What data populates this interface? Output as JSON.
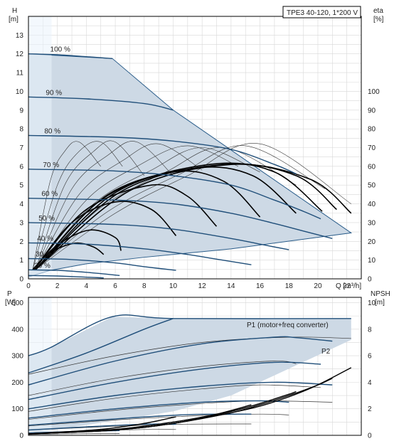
{
  "model_label": "TPE3 40-120, 1*200 V",
  "colors": {
    "envelope_fill": "#cdd9e5",
    "envelope_edge": "#2b5d8a",
    "head_curve": "#1f4e79",
    "eta_curve": "#000000",
    "thin_curve": "#333333",
    "grid": "#d8d8d8",
    "axis": "#000000",
    "highlight": "#eaf2fb"
  },
  "chart_data": [
    {
      "id": "head",
      "type": "line",
      "title": "",
      "xlabel": "Q [m³/h]",
      "ylabel_left": [
        "H",
        "[m]"
      ],
      "ylabel_right": [
        "eta",
        "[%]"
      ],
      "xlim": [
        0,
        23
      ],
      "ylim": [
        0,
        14
      ],
      "y2lim": [
        0,
        140
      ],
      "x_ticks": [
        0,
        2,
        4,
        6,
        8,
        10,
        12,
        14,
        16,
        18,
        20,
        22
      ],
      "y_ticks": [
        0,
        1,
        2,
        3,
        4,
        5,
        6,
        7,
        8,
        9,
        10,
        11,
        12,
        13
      ],
      "y2_ticks": [
        0,
        10,
        20,
        30,
        40,
        50,
        60,
        70,
        80,
        90,
        100
      ],
      "grid": true,
      "envelope": {
        "x": [
          0,
          5.8,
          10,
          22.3,
          14,
          8,
          4,
          1.5,
          0
        ],
        "y": [
          12.0,
          11.75,
          9.0,
          2.45,
          1.6,
          1.15,
          0.8,
          0.45,
          0.1
        ]
      },
      "speed_curves": [
        {
          "label": "100 %",
          "x": [
            0,
            2,
            4,
            5.8
          ],
          "y": [
            12.0,
            11.95,
            11.85,
            11.75
          ]
        },
        {
          "label": "90 %",
          "x": [
            0,
            4,
            8,
            10
          ],
          "y": [
            9.7,
            9.6,
            9.35,
            9.0
          ]
        },
        {
          "label": "80 %",
          "x": [
            0,
            6,
            10,
            14,
            17,
            18.5
          ],
          "y": [
            7.65,
            7.55,
            7.35,
            6.9,
            6.1,
            5.6
          ]
        },
        {
          "label": "70 %",
          "x": [
            0,
            6,
            10,
            14,
            17,
            19,
            20.2
          ],
          "y": [
            5.85,
            5.75,
            5.5,
            5.0,
            4.2,
            3.6,
            3.2
          ]
        },
        {
          "label": "60 %",
          "x": [
            0,
            6,
            10,
            14,
            17,
            19,
            21
          ],
          "y": [
            4.3,
            4.2,
            4.0,
            3.5,
            2.95,
            2.55,
            2.15
          ]
        },
        {
          "label": "50 %",
          "x": [
            0,
            6,
            10,
            14,
            16,
            18
          ],
          "y": [
            3.0,
            2.9,
            2.65,
            2.15,
            1.85,
            1.55
          ]
        },
        {
          "label": "40 %",
          "x": [
            0,
            4,
            8,
            11,
            13,
            15.4
          ],
          "y": [
            1.92,
            1.85,
            1.6,
            1.3,
            1.05,
            0.75
          ]
        },
        {
          "label": "30 %",
          "x": [
            0,
            3,
            6,
            8,
            10.2
          ],
          "y": [
            1.08,
            1.03,
            0.85,
            0.65,
            0.45
          ]
        },
        {
          "label": "20 %",
          "x": [
            0,
            2,
            4,
            6.3
          ],
          "y": [
            0.48,
            0.45,
            0.35,
            0.18
          ]
        },
        {
          "label": "",
          "x": [
            0,
            2,
            3.8,
            5.2
          ],
          "y": [
            0.18,
            0.15,
            0.1,
            0.05
          ]
        }
      ],
      "eta_thin_curves": [
        {
          "x": [
            0.3,
            1.5,
            2.5,
            3.5,
            5.0
          ],
          "y2": [
            5,
            52,
            68,
            73,
            60
          ]
        },
        {
          "x": [
            0.3,
            2,
            3.5,
            5,
            6.5
          ],
          "y2": [
            5,
            50,
            68,
            73,
            60
          ]
        },
        {
          "x": [
            0.5,
            2.5,
            4.5,
            6,
            8
          ],
          "y2": [
            5,
            50,
            68,
            73,
            55
          ]
        },
        {
          "x": [
            0.5,
            3,
            5.5,
            7.5,
            10
          ],
          "y2": [
            5,
            48,
            66,
            73,
            55
          ]
        },
        {
          "x": [
            0.5,
            3.5,
            6.5,
            9,
            12
          ],
          "y2": [
            5,
            45,
            63,
            72,
            58
          ]
        },
        {
          "x": [
            0.5,
            4,
            7.5,
            11,
            14.5
          ],
          "y2": [
            5,
            42,
            60,
            71,
            60
          ]
        },
        {
          "x": [
            0.5,
            4.5,
            8.5,
            12,
            16
          ],
          "y2": [
            5,
            40,
            58,
            70,
            57
          ]
        },
        {
          "x": [
            0.5,
            5,
            9.5,
            13.5,
            18.5
          ],
          "y2": [
            5,
            38,
            57,
            70,
            50
          ]
        },
        {
          "x": [
            0.5,
            5.5,
            10.5,
            15,
            20.5
          ],
          "y2": [
            5,
            36,
            56,
            71,
            48
          ]
        },
        {
          "x": [
            0.5,
            6,
            11,
            16,
            22.3
          ],
          "y2": [
            5,
            35,
            55,
            72,
            40
          ]
        }
      ],
      "eta_bold_curves": [
        {
          "x": [
            0.3,
            1.5,
            3.2,
            4.5,
            5.2
          ],
          "y2": [
            5,
            14,
            19,
            17,
            13
          ]
        },
        {
          "x": [
            0.3,
            2,
            4.2,
            6,
            6.4
          ],
          "y2": [
            5,
            18,
            26,
            22,
            15
          ]
        },
        {
          "x": [
            0.4,
            3,
            6,
            8.5,
            10.2
          ],
          "y2": [
            5,
            30,
            41,
            37,
            23
          ]
        },
        {
          "x": [
            0.4,
            4,
            8.5,
            11,
            13
          ],
          "y2": [
            5,
            37,
            50,
            44,
            28
          ]
        },
        {
          "x": [
            0.5,
            5,
            10,
            13.5,
            16
          ],
          "y2": [
            5,
            42,
            57,
            52,
            33
          ]
        },
        {
          "x": [
            0.5,
            5.5,
            11.5,
            15.5,
            18.5
          ],
          "y2": [
            5,
            45,
            59,
            55,
            35
          ]
        },
        {
          "x": [
            0.5,
            6,
            12.5,
            17,
            20.3
          ],
          "y2": [
            5,
            46,
            61,
            57,
            36
          ]
        },
        {
          "x": [
            0.5,
            6.5,
            13.5,
            18.5,
            21.3
          ],
          "y2": [
            5,
            47,
            61,
            55,
            37
          ]
        },
        {
          "x": [
            0.5,
            7,
            14,
            19.5,
            22.3
          ],
          "y2": [
            5,
            47,
            61,
            53,
            35
          ]
        }
      ]
    },
    {
      "id": "power",
      "type": "line",
      "title": "",
      "xlabel": "",
      "ylabel_left": [
        "P",
        "[W]"
      ],
      "ylabel_right": [
        "NPSH",
        "[m]"
      ],
      "xlim": [
        0,
        23
      ],
      "ylim": [
        0,
        520
      ],
      "y2lim": [
        0,
        10.4
      ],
      "y_ticks": [
        0,
        100,
        200,
        300,
        400,
        500
      ],
      "y2_ticks": [
        0,
        2,
        4,
        6,
        8,
        10
      ],
      "grid": true,
      "envelope": {
        "x": [
          0,
          1.5,
          5.8,
          10,
          22.3,
          22.3,
          14,
          10,
          0
        ],
        "y": [
          300,
          330,
          447,
          440,
          440,
          360,
          150,
          90,
          5
        ]
      },
      "p1_curves": [
        {
          "x": [
            0,
            1.5,
            5.8,
            10,
            22.3
          ],
          "y": [
            300,
            330,
            447,
            440,
            440
          ]
        },
        {
          "x": [
            0,
            4,
            8,
            10
          ],
          "y": [
            235,
            310,
            400,
            440
          ]
        },
        {
          "x": [
            0,
            6,
            12,
            17,
            18.5,
            21
          ],
          "y": [
            190,
            280,
            345,
            370,
            368,
            355
          ]
        },
        {
          "x": [
            0,
            6,
            12,
            17,
            20.2
          ],
          "y": [
            135,
            200,
            250,
            275,
            268
          ]
        },
        {
          "x": [
            0,
            6,
            12,
            17,
            21
          ],
          "y": [
            100,
            150,
            185,
            200,
            190
          ]
        },
        {
          "x": [
            0,
            6,
            12,
            16,
            18
          ],
          "y": [
            65,
            100,
            125,
            130,
            125
          ]
        },
        {
          "x": [
            0,
            6,
            11,
            15.4
          ],
          "y": [
            38,
            62,
            78,
            80
          ]
        },
        {
          "x": [
            0,
            4,
            8,
            10.2
          ],
          "y": [
            20,
            32,
            42,
            42
          ]
        },
        {
          "x": [
            0,
            3,
            6.3
          ],
          "y": [
            8,
            14,
            18
          ]
        }
      ],
      "p2_curves": [
        {
          "x": [
            0,
            6,
            12,
            18,
            22.3
          ],
          "y": [
            230,
            300,
            350,
            370,
            365
          ]
        },
        {
          "x": [
            0,
            6,
            12,
            17,
            18.5
          ],
          "y": [
            150,
            215,
            260,
            280,
            270
          ]
        },
        {
          "x": [
            0,
            6,
            12,
            16,
            20.2
          ],
          "y": [
            90,
            140,
            175,
            190,
            180
          ]
        },
        {
          "x": [
            0,
            6,
            12,
            16,
            21
          ],
          "y": [
            60,
            95,
            120,
            130,
            125
          ]
        },
        {
          "x": [
            0,
            6,
            12,
            16,
            18
          ],
          "y": [
            35,
            58,
            75,
            80,
            77
          ]
        },
        {
          "x": [
            0,
            6,
            11,
            15.4
          ],
          "y": [
            20,
            34,
            42,
            43
          ]
        },
        {
          "x": [
            0,
            4,
            8,
            10.2
          ],
          "y": [
            10,
            17,
            22,
            22
          ]
        },
        {
          "x": [
            0,
            3,
            6.3
          ],
          "y": [
            3,
            6,
            7
          ]
        }
      ],
      "npsh_curves": [
        {
          "x": [
            0,
            6,
            10,
            14,
            16,
            18,
            20,
            22.3
          ],
          "y2": [
            0.1,
            0.4,
            0.9,
            1.7,
            2.2,
            2.9,
            3.8,
            5.1
          ]
        },
        {
          "x": [
            0,
            6,
            10,
            14,
            16,
            18,
            20,
            21
          ],
          "y2": [
            0.1,
            0.4,
            0.9,
            1.7,
            2.3,
            3.0,
            3.8,
            4.3
          ]
        },
        {
          "x": [
            0,
            6,
            10,
            14,
            16,
            18,
            18.5
          ],
          "y2": [
            0.1,
            0.4,
            0.9,
            1.8,
            2.4,
            3.1,
            3.3
          ]
        },
        {
          "x": [
            0,
            6,
            10,
            13,
            15.4
          ],
          "y2": [
            0.1,
            0.45,
            1.0,
            1.6,
            2.3
          ]
        },
        {
          "x": [
            0,
            5,
            8,
            10.2
          ],
          "y2": [
            0.1,
            0.45,
            0.9,
            1.4
          ]
        }
      ],
      "labels": {
        "p1": "P1 (motor+freq converter)",
        "p2": "P2"
      }
    }
  ]
}
